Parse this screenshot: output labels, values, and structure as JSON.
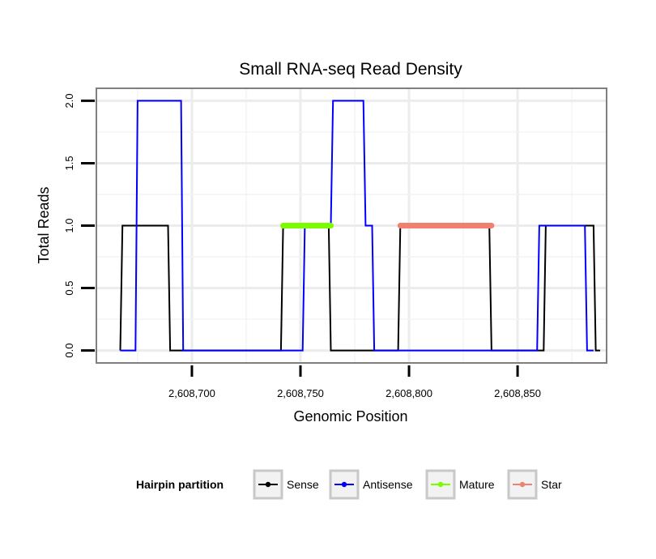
{
  "chart_data": {
    "type": "line",
    "title": "Small RNA-seq Read Density",
    "xlabel": "Genomic Position",
    "ylabel": "Total Reads",
    "xlim": [
      2608656,
      2608891
    ],
    "ylim": [
      -0.1,
      2.1
    ],
    "x_ticks": [
      2608700,
      2608750,
      2608800,
      2608850
    ],
    "x_tick_labels": [
      "2,608,700",
      "2,608,750",
      "2,608,800",
      "2,608,850"
    ],
    "y_ticks": [
      0,
      0.5,
      1,
      1.5,
      2
    ],
    "y_tick_labels": [
      "0.0",
      "0.5",
      "1.0",
      "1.5",
      "2.0"
    ],
    "grid": true,
    "legend": {
      "title": "Hairpin partition",
      "position": "bottom",
      "entries": [
        "Sense",
        "Antisense",
        "Mature",
        "Star"
      ]
    },
    "series": [
      {
        "name": "Sense",
        "color": "#000000",
        "style": "line",
        "points": [
          [
            2608667,
            0
          ],
          [
            2608668,
            1
          ],
          [
            2608689,
            1
          ],
          [
            2608690,
            0
          ],
          [
            2608741,
            0
          ],
          [
            2608742,
            1
          ],
          [
            2608763,
            1
          ],
          [
            2608764,
            0
          ],
          [
            2608795,
            0
          ],
          [
            2608796,
            1
          ],
          [
            2608837,
            1
          ],
          [
            2608838,
            0
          ],
          [
            2608862,
            0
          ],
          [
            2608863,
            1
          ],
          [
            2608885,
            1
          ],
          [
            2608886,
            0
          ],
          [
            2608888,
            0
          ]
        ]
      },
      {
        "name": "Antisense",
        "color": "#0000ff",
        "style": "line",
        "points": [
          [
            2608667,
            0
          ],
          [
            2608674,
            0
          ],
          [
            2608675,
            2
          ],
          [
            2608695,
            2
          ],
          [
            2608696,
            0
          ],
          [
            2608751,
            0
          ],
          [
            2608752,
            1
          ],
          [
            2608764,
            1
          ],
          [
            2608765,
            2
          ],
          [
            2608779,
            2
          ],
          [
            2608780,
            1
          ],
          [
            2608783,
            1
          ],
          [
            2608784,
            0
          ],
          [
            2608859,
            0
          ],
          [
            2608860,
            1
          ],
          [
            2608863,
            1
          ],
          [
            2608864,
            1
          ],
          [
            2608881,
            1
          ],
          [
            2608882,
            0
          ],
          [
            2608885,
            0
          ]
        ]
      },
      {
        "name": "Mature",
        "color": "#7cfc00",
        "style": "thick-segment",
        "x": [
          2608742,
          2608764
        ],
        "y": 1
      },
      {
        "name": "Star",
        "color": "#f08070",
        "style": "thick-segment",
        "x": [
          2608796,
          2608838
        ],
        "y": 1
      }
    ]
  }
}
